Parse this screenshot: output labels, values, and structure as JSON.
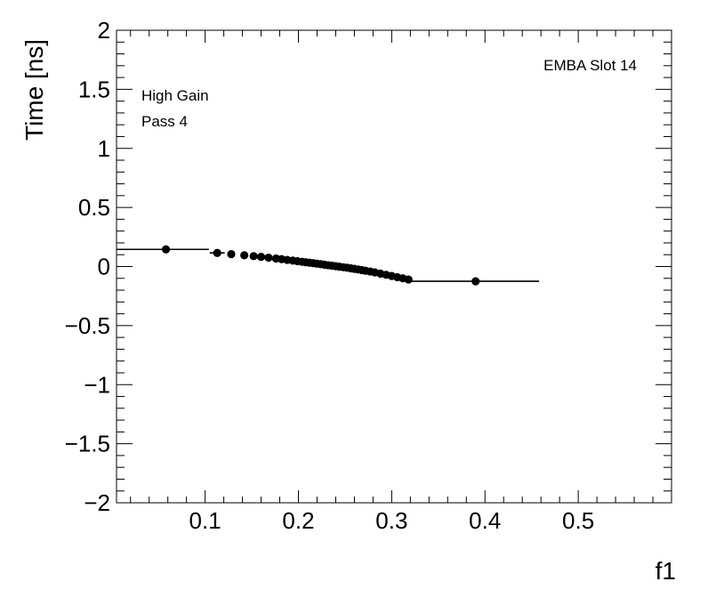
{
  "chart_data": {
    "type": "scatter",
    "xlabel": "f1",
    "ylabel": "Time [ns]",
    "xlim": [
      0.005,
      0.6
    ],
    "ylim": [
      -2,
      2
    ],
    "x_ticks": [
      0.1,
      0.2,
      0.3,
      0.4,
      0.5
    ],
    "x_tick_labels": [
      "0.1",
      "0.2",
      "0.3",
      "0.4",
      "0.5"
    ],
    "y_ticks": [
      -2,
      -1.5,
      -1,
      -0.5,
      0,
      0.5,
      1,
      1.5,
      2
    ],
    "y_tick_labels": [
      "−2",
      "−1.5",
      "−1",
      "−0.5",
      "0",
      "0.5",
      "1",
      "1.5",
      "2"
    ],
    "annotations": {
      "top_left_line1": "High Gain",
      "top_left_line2": "Pass 4",
      "top_right": "EMBA Slot 14"
    },
    "points": [
      {
        "x": 0.058,
        "y": 0.145,
        "xerr_low": 0.053,
        "xerr_high": 0.046
      },
      {
        "x": 0.113,
        "y": 0.115,
        "xerr_low": 0.008,
        "xerr_high": 0.008
      },
      {
        "x": 0.128,
        "y": 0.105
      },
      {
        "x": 0.142,
        "y": 0.095
      },
      {
        "x": 0.152,
        "y": 0.088
      },
      {
        "x": 0.16,
        "y": 0.082
      },
      {
        "x": 0.168,
        "y": 0.075
      },
      {
        "x": 0.176,
        "y": 0.068
      },
      {
        "x": 0.182,
        "y": 0.062
      },
      {
        "x": 0.188,
        "y": 0.056
      },
      {
        "x": 0.194,
        "y": 0.05
      },
      {
        "x": 0.199,
        "y": 0.045
      },
      {
        "x": 0.204,
        "y": 0.04
      },
      {
        "x": 0.208,
        "y": 0.036
      },
      {
        "x": 0.212,
        "y": 0.032
      },
      {
        "x": 0.216,
        "y": 0.028
      },
      {
        "x": 0.22,
        "y": 0.024
      },
      {
        "x": 0.224,
        "y": 0.02
      },
      {
        "x": 0.228,
        "y": 0.015
      },
      {
        "x": 0.232,
        "y": 0.011
      },
      {
        "x": 0.236,
        "y": 0.007
      },
      {
        "x": 0.24,
        "y": 0.003
      },
      {
        "x": 0.244,
        "y": -0.002
      },
      {
        "x": 0.248,
        "y": -0.006
      },
      {
        "x": 0.252,
        "y": -0.01
      },
      {
        "x": 0.256,
        "y": -0.015
      },
      {
        "x": 0.26,
        "y": -0.02
      },
      {
        "x": 0.264,
        "y": -0.025
      },
      {
        "x": 0.268,
        "y": -0.03
      },
      {
        "x": 0.272,
        "y": -0.036
      },
      {
        "x": 0.277,
        "y": -0.042
      },
      {
        "x": 0.282,
        "y": -0.05
      },
      {
        "x": 0.288,
        "y": -0.06
      },
      {
        "x": 0.294,
        "y": -0.07
      },
      {
        "x": 0.3,
        "y": -0.08
      },
      {
        "x": 0.306,
        "y": -0.09
      },
      {
        "x": 0.312,
        "y": -0.1
      },
      {
        "x": 0.318,
        "y": -0.11
      },
      {
        "x": 0.39,
        "y": -0.125,
        "xerr_low": 0.072,
        "xerr_high": 0.068
      }
    ]
  }
}
